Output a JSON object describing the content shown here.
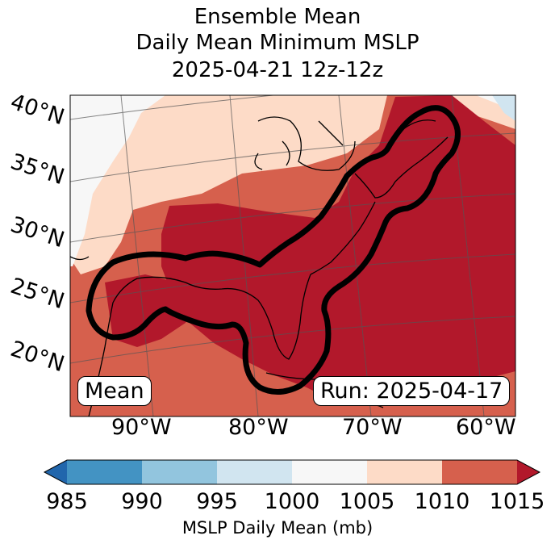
{
  "title": {
    "line1": "Ensemble Mean",
    "line2": "Daily Mean Minimum MSLP",
    "line3": "2025-04-21 12z-12z"
  },
  "map": {
    "lat_labels": [
      "40°N",
      "35°N",
      "30°N",
      "25°N",
      "20°N"
    ],
    "lon_labels": [
      "90°W",
      "80°W",
      "70°W",
      "60°W"
    ],
    "mean_label": "Mean",
    "run_label": "Run: 2025-04-17",
    "fill_colors": {
      "lt_990": "#3a87c0",
      "990_995": "#92c5de",
      "995_1000": "#d1e5f0",
      "1000_1005": "#f7f7f7",
      "1005_1010": "#fddbc7",
      "1010_1015": "#d6604d",
      "gt_1015": "#b2182b"
    }
  },
  "colorbar": {
    "ticks": [
      "985",
      "990",
      "995",
      "1000",
      "1005",
      "1010",
      "1015"
    ],
    "colors": [
      "#2166ac",
      "#4393c3",
      "#92c5de",
      "#d1e5f0",
      "#f7f7f7",
      "#fddbc7",
      "#d6604d",
      "#b2182b"
    ],
    "label": "MSLP Daily Mean (mb)"
  }
}
